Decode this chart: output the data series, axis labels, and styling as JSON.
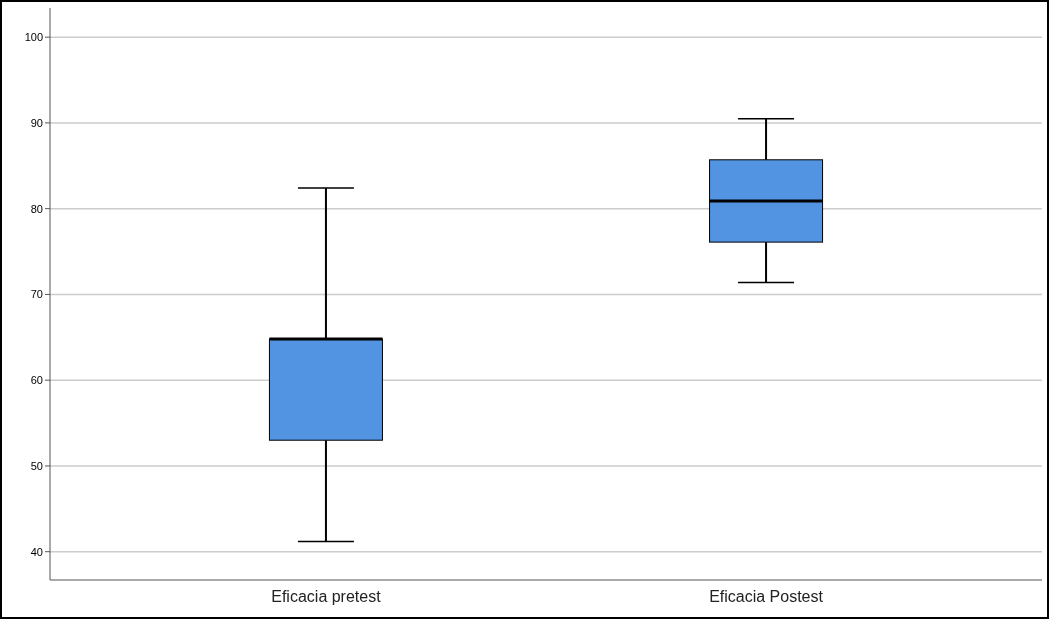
{
  "chart_data": {
    "type": "box",
    "categories": [
      "Eficacia pretest",
      "Eficacia Postest"
    ],
    "boxes": [
      {
        "low": 41.2,
        "q1": 53,
        "median": 64.8,
        "q3": 64.8,
        "high": 82.4
      },
      {
        "low": 71.4,
        "q1": 76.1,
        "median": 80.9,
        "q3": 85.7,
        "high": 90.5
      }
    ],
    "color": "#5294e2",
    "ylim": [
      36.7,
      103.4
    ],
    "yticks": [
      40,
      50,
      60,
      70,
      80,
      90,
      100
    ],
    "grid": "y"
  }
}
